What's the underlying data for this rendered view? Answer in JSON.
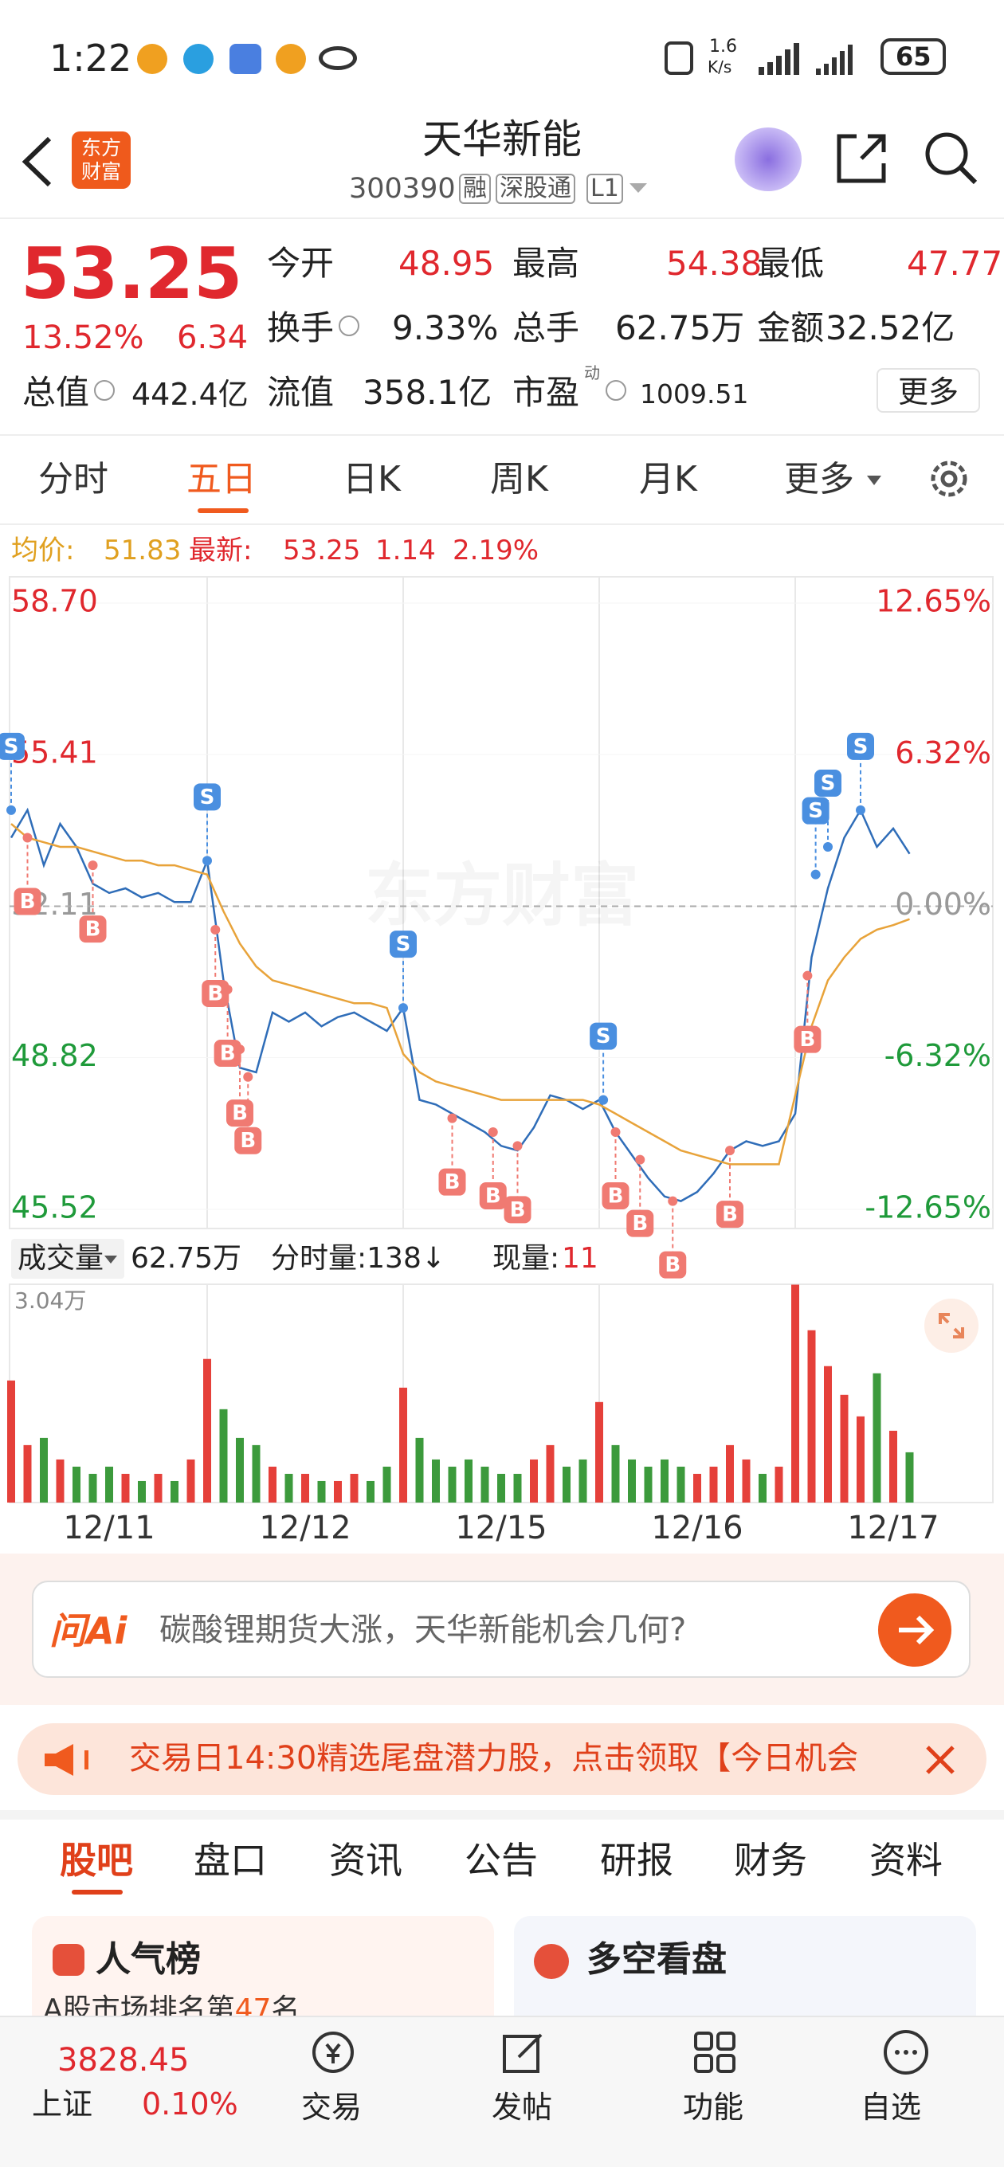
{
  "status_bar": {
    "time": "1:22",
    "speed": "1.6",
    "speed_unit": "K/s",
    "battery": "65"
  },
  "header": {
    "logo_lines": [
      "东方",
      "财富"
    ],
    "title": "天华新能",
    "code": "300390",
    "badges": [
      "融",
      "深股通",
      "L1"
    ]
  },
  "quote": {
    "price": "53.25",
    "change_pct": "13.52%",
    "change": "6.34",
    "fields": [
      {
        "label": "今开",
        "value": "48.95"
      },
      {
        "label": "最高",
        "value": "54.38"
      },
      {
        "label": "最低",
        "value": "47.77"
      },
      {
        "label": "换手",
        "value": "9.33%"
      },
      {
        "label": "总手",
        "value": "62.75万"
      },
      {
        "label": "金额",
        "value": "32.52亿"
      },
      {
        "label": "总值",
        "value": "442.4亿"
      },
      {
        "label": "流值",
        "value": "358.1亿"
      },
      {
        "label": "市盈",
        "sup": "动",
        "value": "1009.51"
      }
    ],
    "more": "更多"
  },
  "period_tabs": {
    "items": [
      "分时",
      "五日",
      "日K",
      "周K",
      "月K",
      "更多"
    ],
    "active": 1
  },
  "chart_info": {
    "avg_label": "均价:",
    "avg": "51.83",
    "last_label": "最新:",
    "last": "53.25",
    "change": "1.14",
    "change_pct": "2.19%"
  },
  "chart_data": [
    {
      "type": "line",
      "watermark": "东方财富",
      "x": [
        0,
        20,
        40,
        60,
        80,
        100,
        120,
        140,
        160,
        180,
        200,
        220,
        240,
        260,
        280,
        300,
        320,
        340,
        360,
        380,
        400,
        420,
        440,
        460,
        480,
        500,
        520,
        540,
        560,
        580,
        600,
        620,
        640,
        660,
        680,
        700,
        720,
        740,
        760,
        780,
        800,
        820,
        840,
        860,
        880,
        900,
        920,
        940,
        960,
        980,
        1000,
        1020,
        1040,
        1060,
        1080,
        1100
      ],
      "xlim": [
        0,
        1200
      ],
      "ylim": [
        45.52,
        58.7
      ],
      "yticks": [
        {
          "value": 58.7,
          "label": "58.70"
        },
        55.41,
        52.11,
        48.82,
        45.52
      ],
      "y2lim": [
        -12.65,
        12.65
      ],
      "y2ticks": [
        {
          "value": 12.65,
          "label": "12.65%"
        },
        {
          "value": 6.32,
          "label": "6.32%"
        },
        {
          "value": 0,
          "label": "0.00%"
        },
        {
          "value": -6.32,
          "label": "-6.32%"
        },
        {
          "value": -12.65,
          "label": "-12.65%"
        }
      ],
      "prev_close": 52.11,
      "series": [
        {
          "color": "#2f6db8",
          "values": [
            53.6,
            54.2,
            53.0,
            53.9,
            53.4,
            52.6,
            52.4,
            52.5,
            52.3,
            52.4,
            52.2,
            52.2,
            53.1,
            50.5,
            48.6,
            48.5,
            49.8,
            49.6,
            49.8,
            49.5,
            49.7,
            49.8,
            49.6,
            49.4,
            49.9,
            47.9,
            47.8,
            47.6,
            47.4,
            47.2,
            46.9,
            46.8,
            47.3,
            48.0,
            47.9,
            47.7,
            47.9,
            47.2,
            46.7,
            46.2,
            45.8,
            45.7,
            45.9,
            46.3,
            46.8,
            47.0,
            46.9,
            47.0,
            47.6,
            51.0,
            52.5,
            53.6,
            54.2,
            53.4,
            53.8,
            53.25
          ]
        },
        {
          "color": "#e8a33a",
          "values": [
            53.9,
            53.6,
            53.5,
            53.4,
            53.4,
            53.3,
            53.2,
            53.1,
            53.1,
            53.0,
            53.0,
            52.9,
            52.8,
            52.0,
            51.3,
            50.8,
            50.5,
            50.4,
            50.3,
            50.2,
            50.1,
            50.0,
            50.0,
            49.9,
            48.9,
            48.5,
            48.3,
            48.2,
            48.1,
            48.0,
            47.9,
            47.9,
            47.9,
            47.9,
            47.9,
            47.9,
            47.8,
            47.6,
            47.4,
            47.2,
            47.0,
            46.8,
            46.7,
            46.6,
            46.5,
            46.5,
            46.5,
            46.5,
            48.0,
            49.5,
            50.5,
            51.0,
            51.4,
            51.6,
            51.7,
            51.83
          ]
        }
      ],
      "signal_colors": {
        "S": "#4a8fe0",
        "B": "#f07a72"
      },
      "signals": [
        {
          "x": 0,
          "value": 54.2,
          "label": "S"
        },
        {
          "x": 20,
          "value": 53.6,
          "label": "B"
        },
        {
          "x": 100,
          "value": 53.0,
          "label": "B"
        },
        {
          "x": 240,
          "value": 53.1,
          "label": "S"
        },
        {
          "x": 250,
          "value": 51.6,
          "label": "B"
        },
        {
          "x": 265,
          "value": 50.3,
          "label": "B"
        },
        {
          "x": 280,
          "value": 49.0,
          "label": "B"
        },
        {
          "x": 290,
          "value": 48.4,
          "label": "B"
        },
        {
          "x": 480,
          "value": 49.9,
          "label": "S"
        },
        {
          "x": 540,
          "value": 47.5,
          "label": "B"
        },
        {
          "x": 590,
          "value": 47.2,
          "label": "B"
        },
        {
          "x": 620,
          "value": 46.9,
          "label": "B"
        },
        {
          "x": 725,
          "value": 47.9,
          "label": "S"
        },
        {
          "x": 740,
          "value": 47.2,
          "label": "B"
        },
        {
          "x": 770,
          "value": 46.6,
          "label": "B"
        },
        {
          "x": 810,
          "value": 45.7,
          "label": "B"
        },
        {
          "x": 880,
          "value": 46.8,
          "label": "B"
        },
        {
          "x": 975,
          "value": 50.6,
          "label": "B"
        },
        {
          "x": 985,
          "value": 52.8,
          "label": "S"
        },
        {
          "x": 1000,
          "value": 53.4,
          "label": "S"
        },
        {
          "x": 1040,
          "value": 54.2,
          "label": "S"
        }
      ]
    },
    {
      "type": "bar",
      "x": [
        0,
        20,
        40,
        60,
        80,
        100,
        120,
        140,
        160,
        180,
        200,
        220,
        240,
        260,
        280,
        300,
        320,
        340,
        360,
        380,
        400,
        420,
        440,
        460,
        480,
        500,
        520,
        540,
        560,
        580,
        600,
        620,
        640,
        660,
        680,
        700,
        720,
        740,
        760,
        780,
        800,
        820,
        840,
        860,
        880,
        900,
        920,
        940,
        960,
        980,
        1000,
        1020,
        1040,
        1060,
        1080,
        1100
      ],
      "values": [
        1.7,
        0.8,
        0.9,
        0.6,
        0.5,
        0.4,
        0.5,
        0.4,
        0.3,
        0.4,
        0.3,
        0.6,
        2.0,
        1.3,
        0.9,
        0.8,
        0.5,
        0.4,
        0.4,
        0.3,
        0.3,
        0.4,
        0.3,
        0.5,
        1.6,
        0.9,
        0.6,
        0.5,
        0.6,
        0.5,
        0.4,
        0.4,
        0.6,
        0.8,
        0.5,
        0.6,
        1.4,
        0.8,
        0.6,
        0.5,
        0.6,
        0.5,
        0.4,
        0.5,
        0.8,
        0.6,
        0.4,
        0.5,
        3.04,
        2.4,
        1.9,
        1.5,
        1.2,
        1.8,
        1.0,
        0.7
      ],
      "xlim": [
        0,
        1200
      ],
      "xticks": [
        {
          "value": 120,
          "label": "12/11"
        },
        {
          "value": 360,
          "label": "12/12"
        },
        {
          "value": 600,
          "label": "12/15"
        },
        {
          "value": 840,
          "label": "12/16"
        },
        {
          "value": 1080,
          "label": "12/17"
        }
      ],
      "ylim": [
        0,
        3.04
      ],
      "yticks": [
        {
          "value": 3.04,
          "label": "3.04万"
        }
      ],
      "colors": {
        "up": "#e5403a",
        "down": "#3c9a3c"
      }
    }
  ],
  "volume_header": {
    "label": "成交量",
    "total": "62.75万",
    "tick_label": "分时量:138↓",
    "current_label": "现量:",
    "current": "11"
  },
  "ai_box": {
    "logo": "问Ai",
    "prompt": "碳酸锂期货大涨，天华新能机会几何?"
  },
  "banner": {
    "text": "交易日14:30精选尾盘潜力股，点击领取【今日机会"
  },
  "section_tabs": {
    "items": [
      "股吧",
      "盘口",
      "资讯",
      "公告",
      "研报",
      "财务",
      "资料"
    ],
    "active": 0
  },
  "cards": [
    {
      "title": "人气榜",
      "text": "A股市场排名第",
      "rank": "47",
      "suffix": "名"
    },
    {
      "title": "多空看盘"
    }
  ],
  "bottom_nav": {
    "index_value": "3828.45",
    "index_name": "上证",
    "index_change": "0.10%",
    "items": [
      "交易",
      "发帖",
      "功能",
      "自选"
    ]
  }
}
